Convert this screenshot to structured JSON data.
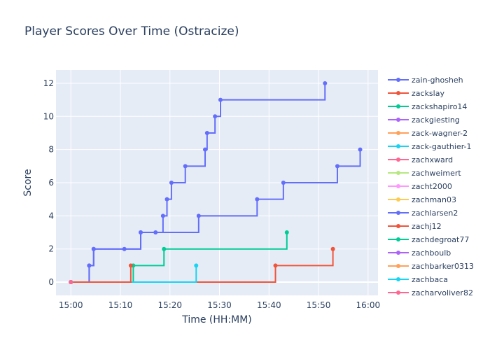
{
  "chart_data": {
    "type": "line",
    "line_shape": "step",
    "title": "Player Scores Over Time (Ostracize)",
    "xlabel": "Time (HH:MM)",
    "ylabel": "Score",
    "x_range": [
      "14:57",
      "16:02"
    ],
    "ylim": [
      -0.8,
      12.8
    ],
    "x_ticks": [
      "15:00",
      "15:10",
      "15:20",
      "15:30",
      "15:40",
      "15:50",
      "16:00"
    ],
    "y_ticks": [
      0,
      2,
      4,
      6,
      8,
      10,
      12
    ],
    "grid": true,
    "legend_position": "right",
    "series": [
      {
        "name": "zain-ghosheh",
        "color": "#636efa",
        "points": [
          [
            "15:00",
            0
          ],
          [
            "15:03.7",
            1
          ],
          [
            "15:04.6",
            2
          ],
          [
            "15:10.8",
            2
          ],
          [
            "15:14.1",
            3
          ],
          [
            "15:17.1",
            3
          ],
          [
            "15:18.6",
            4
          ],
          [
            "15:19.4",
            5
          ],
          [
            "15:20.3",
            6
          ],
          [
            "15:23.1",
            7
          ],
          [
            "15:27.1",
            8
          ],
          [
            "15:27.5",
            9
          ],
          [
            "15:29.1",
            10
          ],
          [
            "15:30.2",
            11
          ],
          [
            "15:51.3",
            12
          ]
        ]
      },
      {
        "name": "zackslay",
        "color": "#ef553b",
        "points": [
          [
            "15:00",
            0
          ],
          [
            "15:41.3",
            1
          ],
          [
            "15:52.9",
            2
          ]
        ]
      },
      {
        "name": "zackshapiro14",
        "color": "#00cc96",
        "points": [
          [
            "15:00",
            0
          ],
          [
            "15:12.6",
            1
          ],
          [
            "15:18.8",
            2
          ],
          [
            "15:43.6",
            3
          ]
        ]
      },
      {
        "name": "zackgiesting",
        "color": "#ab63fa",
        "points": [
          [
            "15:00",
            0
          ]
        ]
      },
      {
        "name": "zack-wagner-2",
        "color": "#ffa15a",
        "points": [
          [
            "15:00",
            0
          ]
        ]
      },
      {
        "name": "zack-gauthier-1",
        "color": "#19d3f3",
        "points": [
          [
            "15:00",
            0
          ],
          [
            "15:25.3",
            1
          ]
        ]
      },
      {
        "name": "zachxward",
        "color": "#ff6692",
        "points": [
          [
            "15:00",
            0
          ]
        ]
      },
      {
        "name": "zachweimert",
        "color": "#b6e880",
        "points": [
          [
            "15:00",
            0
          ]
        ]
      },
      {
        "name": "zacht2000",
        "color": "#ff97ff",
        "points": [
          [
            "15:00",
            0
          ]
        ]
      },
      {
        "name": "zachman03",
        "color": "#fecb52",
        "points": [
          [
            "15:00",
            0
          ]
        ]
      },
      {
        "name": "zachlarsen2",
        "color": "#636efa",
        "points": [
          [
            "15:00",
            0
          ],
          [
            "15:03.7",
            1
          ],
          [
            "15:04.6",
            2
          ],
          [
            "15:14.1",
            3
          ],
          [
            "15:25.8",
            4
          ],
          [
            "15:37.6",
            5
          ],
          [
            "15:42.9",
            6
          ],
          [
            "15:53.8",
            7
          ],
          [
            "15:58.4",
            8
          ]
        ]
      },
      {
        "name": "zachj12",
        "color": "#ef553b",
        "points": [
          [
            "15:00",
            0
          ],
          [
            "15:12.1",
            1
          ]
        ]
      },
      {
        "name": "zachdegroat77",
        "color": "#00cc96",
        "points": [
          [
            "15:00",
            0
          ]
        ]
      },
      {
        "name": "zachboulb",
        "color": "#ab63fa",
        "points": [
          [
            "15:00",
            0
          ]
        ]
      },
      {
        "name": "zachbarker0313",
        "color": "#ffa15a",
        "points": [
          [
            "15:00",
            0
          ]
        ]
      },
      {
        "name": "zachbaca",
        "color": "#19d3f3",
        "points": [
          [
            "15:00",
            0
          ]
        ]
      },
      {
        "name": "zacharyoliver82",
        "color": "#ff6692",
        "points": [
          [
            "15:00",
            0
          ]
        ]
      }
    ]
  }
}
